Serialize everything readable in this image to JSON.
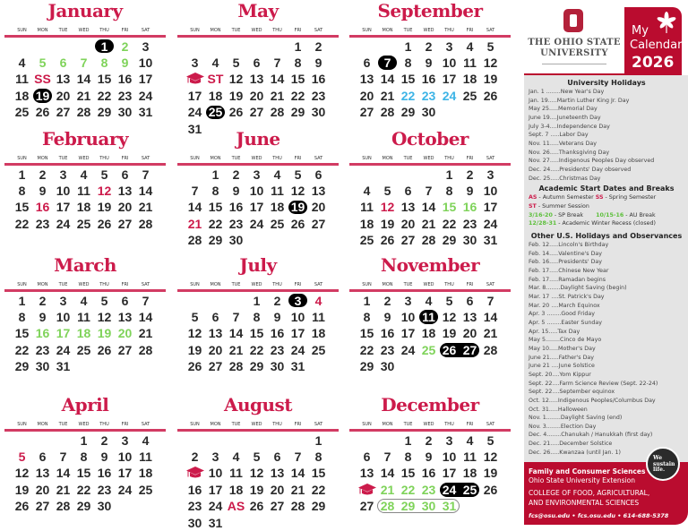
{
  "weekday_labels": [
    "SUN",
    "MON",
    "TUE",
    "WED",
    "THU",
    "FRI",
    "SAT"
  ],
  "colors": {
    "month_title": "#cc1b4b",
    "break_green": "#7fd35a",
    "fsr_blue": "#3db4e6",
    "holiday_pill": "#000000",
    "scarlet": "#ba0c2f"
  },
  "months": [
    {
      "name": "January",
      "start": 4,
      "days": 31,
      "labels": {
        "12": "SS"
      },
      "marks": {
        "1": "hol",
        "19": "hol",
        "2": "c-green",
        "5": "c-green",
        "6": "c-green",
        "7": "c-green",
        "8": "c-green",
        "9": "c-green",
        "12": "c-red"
      }
    },
    {
      "name": "February",
      "start": 0,
      "days": 28,
      "labels": {},
      "marks": {
        "12": "c-red",
        "16": "c-red"
      }
    },
    {
      "name": "March",
      "start": 0,
      "days": 31,
      "labels": {},
      "marks": {
        "16": "c-green",
        "17": "c-green",
        "18": "c-green",
        "19": "c-green",
        "20": "c-green"
      }
    },
    {
      "name": "April",
      "start": 3,
      "days": 30,
      "labels": {},
      "marks": {
        "5": "c-red"
      }
    },
    {
      "name": "May",
      "start": 5,
      "days": 31,
      "labels": {
        "11": "ST"
      },
      "caps": [
        10
      ],
      "marks": {
        "11": "c-red",
        "25": "hol"
      }
    },
    {
      "name": "June",
      "start": 1,
      "days": 30,
      "labels": {},
      "marks": {
        "19": "hol",
        "21": "c-red"
      }
    },
    {
      "name": "July",
      "start": 3,
      "days": 31,
      "labels": {},
      "marks": {
        "3": "hol",
        "4": "c-red"
      }
    },
    {
      "name": "August",
      "start": 6,
      "days": 31,
      "labels": {
        "25": "AS"
      },
      "caps": [
        9
      ],
      "marks": {
        "25": "c-red"
      }
    },
    {
      "name": "September",
      "start": 2,
      "days": 30,
      "labels": {},
      "marks": {
        "7": "hol",
        "22": "c-blue",
        "23": "c-blue",
        "24": "c-blue"
      }
    },
    {
      "name": "October",
      "start": 4,
      "days": 31,
      "labels": {},
      "marks": {
        "12": "c-red",
        "15": "c-green",
        "16": "c-green"
      }
    },
    {
      "name": "November",
      "start": 0,
      "days": 30,
      "labels": {},
      "marks": {
        "11": "hol",
        "25": "c-green",
        "26": "holL",
        "27": "holR"
      }
    },
    {
      "name": "December",
      "start": 2,
      "days": 31,
      "labels": {},
      "caps": [
        20
      ],
      "marks": {
        "21": "c-green",
        "22": "c-green",
        "23": "c-green",
        "24": "holL",
        "25": "holR",
        "28": "c-green outL",
        "29": "c-green outM",
        "30": "c-green outM",
        "31": "c-green outR"
      }
    }
  ],
  "brand": {
    "university_line1": "THE OHIO STATE",
    "university_line2": "UNIVERSITY",
    "my": "My",
    "calendar": "Calendar",
    "year": "2026"
  },
  "university_holidays": {
    "title": "University Holidays",
    "items": [
      {
        "date": "Jan. 1 ........",
        "name": "New Year's Day"
      },
      {
        "date": "Jan. 19.....",
        "name": "Martin Luther King Jr. Day"
      },
      {
        "date": "May 25.....",
        "name": "Memorial Day"
      },
      {
        "date": "June 19....",
        "name": "Juneteenth Day"
      },
      {
        "date": "July 3-4....",
        "name": "Independence Day"
      },
      {
        "date": "Sept. 7 .....",
        "name": "Labor Day"
      },
      {
        "date": "Nov. 11.....",
        "name": "Veterans Day"
      },
      {
        "date": "Nov. 26.....",
        "name": "Thanksgiving Day"
      },
      {
        "date": "Nov. 27.....",
        "name": "Indigenous Peoples Day observed"
      },
      {
        "date": "Dec. 24.....",
        "name": "Presidents' Day observed"
      },
      {
        "date": "Dec. 25.....",
        "name": "Christmas Day"
      }
    ]
  },
  "academic": {
    "title": "Academic Start Dates and Breaks",
    "lines": [
      [
        {
          "text": "AS",
          "style": "red"
        },
        {
          "text": " - Autumn Semester "
        },
        {
          "text": "SS",
          "style": "red"
        },
        {
          "text": " - Spring Semester"
        }
      ],
      [
        {
          "text": "ST",
          "style": "red"
        },
        {
          "text": " - Summer Session"
        }
      ],
      [
        {
          "text": "3/16-20",
          "style": "green"
        },
        {
          "text": " - SP Break       "
        },
        {
          "text": "10/15-16",
          "style": "green"
        },
        {
          "text": " - AU Break"
        }
      ],
      [
        {
          "text": "12/28-31",
          "style": "green"
        },
        {
          "text": " - Academic Winter Recess (closed)"
        }
      ]
    ]
  },
  "other_holidays": {
    "title": "Other U.S. Holidays and Observances",
    "items": [
      {
        "date": "Feb. 12.....",
        "name": "Lincoln's Birthday"
      },
      {
        "date": "Feb. 14.....",
        "name": "Valentine's Day"
      },
      {
        "date": "Feb. 16.....",
        "name": "Presidents' Day"
      },
      {
        "date": "Feb. 17.....",
        "name": "Chinese New Year"
      },
      {
        "date": "Feb. 17.....",
        "name": "Ramadan begins"
      },
      {
        "date": "Mar. 8........",
        "name": "Daylight Saving (begin)"
      },
      {
        "date": "Mar. 17 ....",
        "name": "St. Patrick's Day"
      },
      {
        "date": "Mar. 20 ....",
        "name": "March Equinox"
      },
      {
        "date": "Apr. 3 ........",
        "name": "Good Friday"
      },
      {
        "date": "Apr. 5 ........",
        "name": "Easter Sunday"
      },
      {
        "date": "Apr. 15.....",
        "name": "Tax Day"
      },
      {
        "date": "May 5........",
        "name": "Cinco de Mayo"
      },
      {
        "date": "May 10.....",
        "name": "Mother's Day"
      },
      {
        "date": "June 21.....",
        "name": "Father's Day"
      },
      {
        "date": "June 21 ....",
        "name": "June Solstice"
      },
      {
        "date": "Sept. 20....",
        "name": "Yom Kippur"
      },
      {
        "date": "Sept. 22....",
        "name": "Farm Science Review (Sept. 22-24)"
      },
      {
        "date": "Sept. 22....",
        "name": "September equinox"
      },
      {
        "date": "Oct. 12.....",
        "name": "Indigenous Peoples/Columbus Day"
      },
      {
        "date": "Oct. 31.....",
        "name": "Halloween"
      },
      {
        "date": "Nov. 1........",
        "name": "Daylight Saving (end)"
      },
      {
        "date": "Nov. 3........",
        "name": "Election Day"
      },
      {
        "date": "Dec. 4........",
        "name": "Chanukah / Hanukkah (first day)"
      },
      {
        "date": "Dec. 21.....",
        "name": "December Solstice"
      },
      {
        "date": "Dec. 26.....",
        "name": "Kwanzaa (until Jan. 1)"
      }
    ]
  },
  "badge": {
    "text": "We sustain life."
  },
  "footer": {
    "line1": "Family and Consumer Sciences",
    "line2": "Ohio State University Extension",
    "line3": "COLLEGE OF FOOD, AGRICULTURAL,",
    "line4": "AND ENVIRONMENTAL SCIENCES",
    "contact": "fcs@osu.edu • fcs.osu.edu • 614-688-5378"
  }
}
